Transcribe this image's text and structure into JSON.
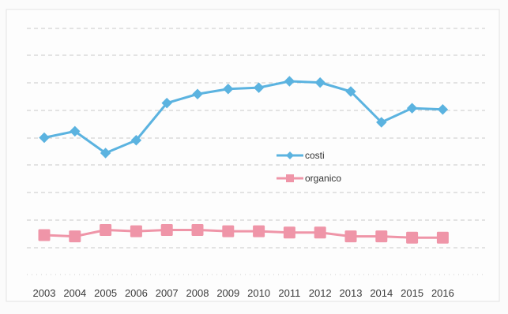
{
  "chart_data": {
    "type": "line",
    "categories": [
      "2003",
      "2004",
      "2005",
      "2006",
      "2007",
      "2008",
      "2009",
      "2010",
      "2011",
      "2012",
      "2013",
      "2014",
      "2015",
      "2016"
    ],
    "series": [
      {
        "name": "costi",
        "color": "#5bb3e0",
        "marker": "diamond",
        "values": [
          38,
          40.5,
          32,
          37,
          51.5,
          55,
          57,
          57.5,
          60,
          59.5,
          56,
          44,
          49.5,
          49
        ]
      },
      {
        "name": "organico",
        "color": "#ef95a8",
        "marker": "square",
        "values": [
          0,
          -0.5,
          2,
          1.5,
          2,
          2,
          1.5,
          1.5,
          1,
          1,
          -0.5,
          -0.5,
          -1,
          -1
        ]
      }
    ],
    "ylim": [
      0,
      80
    ],
    "grid": true,
    "legend_position": "center-right"
  }
}
